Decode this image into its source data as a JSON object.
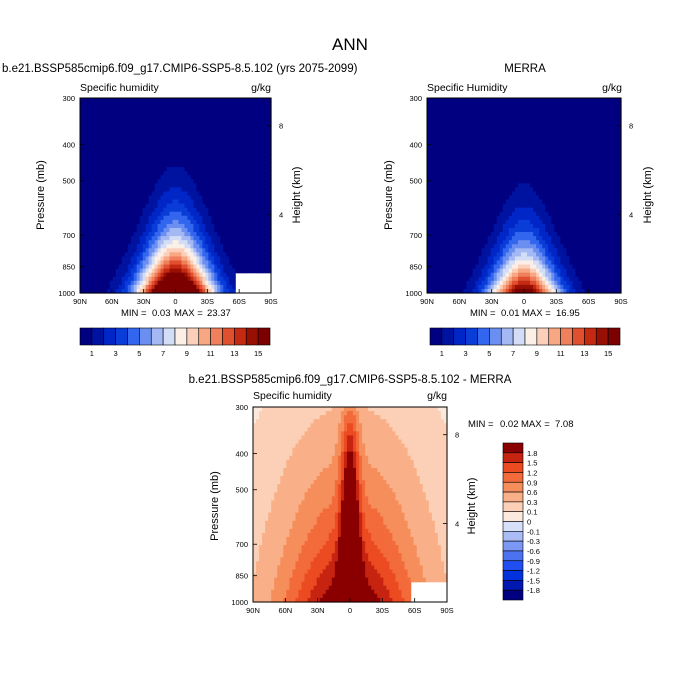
{
  "page": {
    "title": "ANN"
  },
  "palettes": {
    "abs": [
      "#000080",
      "#0012a0",
      "#0026c8",
      "#0a3dd8",
      "#3366ee",
      "#6b8ff0",
      "#a4b8f4",
      "#d3def6",
      "#fcefe6",
      "#fbcfb9",
      "#f7a883",
      "#f07f5c",
      "#e0502f",
      "#c42a12",
      "#981004",
      "#7c0000"
    ],
    "diff": [
      "#000080",
      "#0018b0",
      "#0033dd",
      "#1f4ff0",
      "#4c72f2",
      "#7b98f4",
      "#a9bcf6",
      "#d6e0f8",
      "#fbe9dd",
      "#fbd0b6",
      "#f9b088",
      "#f68e5c",
      "#f36b3a",
      "#ec4a20",
      "#c62410",
      "#8a0000"
    ]
  },
  "chart_data": [
    {
      "id": "top-left",
      "type": "heatmap",
      "title": "b.e21.BSSP585cmip6.f09_g17.CMIP6-SSP5-8.5.102 (yrs 2075-2099)",
      "left_label": "Specific humidity",
      "right_label": "g/kg",
      "ylabel": "Pressure (mb)",
      "ylabel_right": "Height (km)",
      "x_ticks": [
        "90N",
        "60N",
        "30N",
        "0",
        "30S",
        "60S",
        "90S"
      ],
      "y_ticks": [
        "300",
        "400",
        "500",
        "700",
        "850",
        "1000"
      ],
      "y_ticks_right": [
        "8",
        "4"
      ],
      "stats": {
        "min_label": "MIN =",
        "min": "0.03",
        "max_label": "MAX =",
        "max": "23.37"
      },
      "colorbar": {
        "orientation": "horizontal",
        "palette": "abs",
        "labels": [
          "1",
          "3",
          "5",
          "7",
          "9",
          "11",
          "13",
          "15"
        ]
      },
      "field": {
        "peak": 22,
        "width": 25,
        "base": 0.3,
        "decay": 2.1,
        "top_width": 12,
        "mask_s": 57
      }
    },
    {
      "id": "top-right",
      "type": "heatmap",
      "title": "MERRA",
      "left_label": "Specific Humidity",
      "right_label": "g/kg",
      "ylabel": "Pressure (mb)",
      "ylabel_right": "Height (km)",
      "x_ticks": [
        "90N",
        "60N",
        "30N",
        "0",
        "30S",
        "60S",
        "90S"
      ],
      "y_ticks": [
        "300",
        "400",
        "500",
        "700",
        "850",
        "1000"
      ],
      "y_ticks_right": [
        "8",
        "4"
      ],
      "stats": {
        "min_label": "MIN =",
        "min": "0.01",
        "max_label": "MAX =",
        "max": "16.95"
      },
      "colorbar": {
        "orientation": "horizontal",
        "palette": "abs",
        "labels": [
          "1",
          "3",
          "5",
          "7",
          "9",
          "11",
          "13",
          "15"
        ]
      },
      "field": {
        "peak": 16.5,
        "width": 23,
        "base": 0.3,
        "decay": 2.4,
        "top_width": 10
      }
    },
    {
      "id": "bottom",
      "type": "heatmap",
      "title": "b.e21.BSSP585cmip6.f09_g17.CMIP6-SSP5-8.5.102 - MERRA",
      "left_label": "Specific humidity",
      "right_label": "g/kg",
      "ylabel": "Pressure (mb)",
      "ylabel_right": "Height (km)",
      "x_ticks": [
        "90N",
        "60N",
        "30N",
        "0",
        "30S",
        "60S",
        "90S"
      ],
      "y_ticks": [
        "300",
        "400",
        "500",
        "700",
        "850",
        "1000"
      ],
      "y_ticks_right": [
        "8",
        "4"
      ],
      "stats": {
        "min_label": "MIN =",
        "min": "0.02",
        "max_label": "MAX =",
        "max": "7.08"
      },
      "colorbar": {
        "orientation": "vertical",
        "palette": "diff",
        "labels": [
          "1.8",
          "1.5",
          "1.2",
          "0.9",
          "0.6",
          "0.3",
          "0.1",
          "0",
          "-0.1",
          "-0.3",
          "-0.6",
          "-0.9",
          "-1.2",
          "-1.5",
          "-1.8"
        ]
      },
      "field": {
        "mask_s": 55
      }
    }
  ]
}
